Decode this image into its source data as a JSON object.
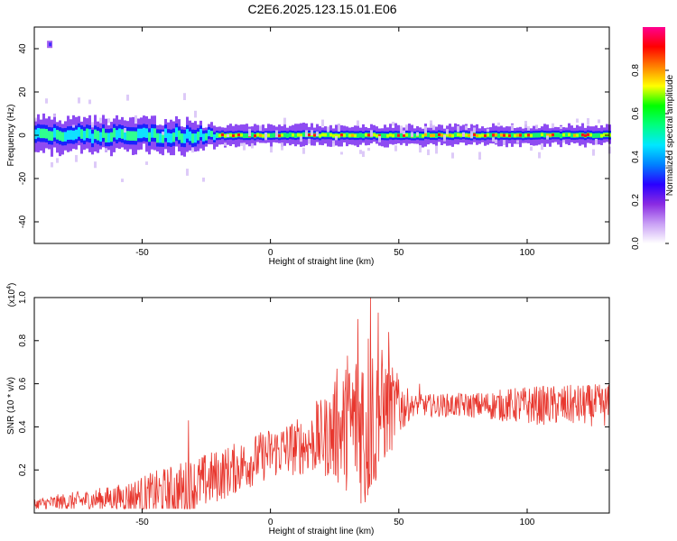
{
  "title": "C2E6.2025.123.15.01.E06",
  "chart_data": [
    {
      "type": "heatmap",
      "xlabel": "Height of straight line (km)",
      "ylabel": "Frequency (Hz)",
      "xlim": [
        -92,
        132
      ],
      "ylim": [
        -50,
        50
      ],
      "x_ticks": [
        -50,
        0,
        50,
        100
      ],
      "y_ticks": [
        40,
        20,
        0,
        -20,
        -40
      ],
      "grid": false,
      "colorbar": {
        "label": "Normalized spectral amplitude",
        "range": [
          0,
          1
        ],
        "ticks": [
          0.0,
          0.2,
          0.4,
          0.6,
          0.8
        ],
        "colors": [
          "#ffffff",
          "#c9a0f5",
          "#8a2be2",
          "#2a00ff",
          "#0080ff",
          "#00e8ff",
          "#00ff80",
          "#00ff00",
          "#ffff00",
          "#ff8000",
          "#ff0000",
          "#ff0090"
        ]
      },
      "band": {
        "center_hz": 0,
        "core_halfwidth_hz": [
          {
            "x": -92,
            "halfwidth": 4
          },
          {
            "x": -30,
            "halfwidth": 4
          },
          {
            "x": -20,
            "halfwidth": 2
          },
          {
            "x": 132,
            "halfwidth": 2
          }
        ],
        "outer_halfwidth_hz": [
          {
            "x": -92,
            "halfwidth": 7
          },
          {
            "x": -30,
            "halfwidth": 6
          },
          {
            "x": -20,
            "halfwidth": 4
          },
          {
            "x": 132,
            "halfwidth": 4
          }
        ],
        "noise_spot": {
          "x": -86,
          "freq": 42
        }
      }
    },
    {
      "type": "line",
      "xlabel": "Height of straight line (km)",
      "ylabel": "SNR (10 * v/v)",
      "multiplier_label": "(x10",
      "multiplier_exponent": "4",
      "multiplier_close": ")",
      "xlim": [
        -92,
        132
      ],
      "ylim": [
        0,
        1.0
      ],
      "x_ticks": [
        -50,
        0,
        50,
        100
      ],
      "y_ticks": [
        0.2,
        0.4,
        0.6,
        0.8,
        1.0
      ],
      "grid": false,
      "series": [
        {
          "color": "#e8372e",
          "envelope": [
            {
              "x": -92,
              "base": 0.04,
              "amp": 0.03
            },
            {
              "x": -60,
              "base": 0.07,
              "amp": 0.06
            },
            {
              "x": -35,
              "base": 0.1,
              "amp": 0.14
            },
            {
              "x": -15,
              "base": 0.2,
              "amp": 0.12
            },
            {
              "x": 0,
              "base": 0.28,
              "amp": 0.12
            },
            {
              "x": 15,
              "base": 0.32,
              "amp": 0.14
            },
            {
              "x": 22,
              "base": 0.36,
              "amp": 0.2
            },
            {
              "x": 30,
              "base": 0.4,
              "amp": 0.3
            },
            {
              "x": 38,
              "base": 0.45,
              "amp": 0.45
            },
            {
              "x": 45,
              "base": 0.48,
              "amp": 0.25
            },
            {
              "x": 55,
              "base": 0.5,
              "amp": 0.05
            },
            {
              "x": 80,
              "base": 0.5,
              "amp": 0.06
            },
            {
              "x": 100,
              "base": 0.5,
              "amp": 0.09
            },
            {
              "x": 132,
              "base": 0.5,
              "amp": 0.1
            }
          ],
          "peaks": [
            {
              "x": -32,
              "y": 0.43
            },
            {
              "x": 18,
              "y": 0.52
            },
            {
              "x": 26,
              "y": 0.67
            },
            {
              "x": 30,
              "y": 0.73
            },
            {
              "x": 34,
              "y": 0.9
            },
            {
              "x": 37,
              "y": 0.05
            },
            {
              "x": 39,
              "y": 1.0
            },
            {
              "x": 41,
              "y": 0.15
            },
            {
              "x": 42,
              "y": 0.93
            },
            {
              "x": 46,
              "y": 0.84
            },
            {
              "x": 50,
              "y": 0.62
            },
            {
              "x": 58,
              "y": 0.6
            }
          ]
        }
      ]
    }
  ]
}
